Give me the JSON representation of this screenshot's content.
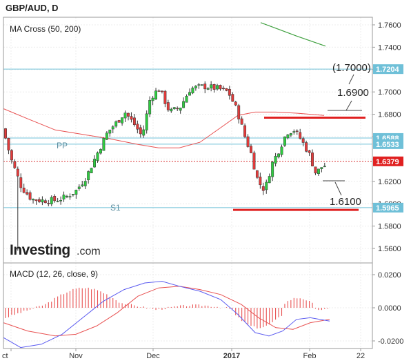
{
  "header": {
    "title": "GBP/AUD, D"
  },
  "chart_data": [
    {
      "type": "candlestick",
      "indicator_label": "MA Cross (50, 200)",
      "x_ticks": [
        "ct",
        "Nov",
        "Dec",
        "2017",
        "Feb",
        "22"
      ],
      "y_ticks": [
        1.76,
        1.74,
        1.72,
        1.7,
        1.68,
        1.66,
        1.64,
        1.62,
        1.6,
        1.58,
        1.56
      ],
      "ylim": [
        1.548,
        1.766
      ],
      "price_tags": [
        {
          "value": 1.7204,
          "label": "1.7204",
          "color": "#6fc0d8"
        },
        {
          "value": 1.6588,
          "label": "1.6588",
          "color": "#6fc0d8"
        },
        {
          "value": 1.6533,
          "label": "1.6533",
          "color": "#6fc0d8"
        },
        {
          "value": 1.6379,
          "label": "1.6379",
          "color": "#e02020"
        },
        {
          "value": 1.5965,
          "label": "1.5965",
          "color": "#6fc0d8"
        }
      ],
      "level_labels": {
        "pp": "PP",
        "s1": "S1"
      },
      "annotations": [
        "(1.7000)",
        "1.6900",
        "1.6100"
      ],
      "resistance": 1.677,
      "support": 1.5945,
      "watermark": "Investing",
      "watermark_suffix": ".com",
      "colors": {
        "up": "#2ecc40",
        "down": "#e23b3b",
        "ma_fast": "#e85050",
        "ma_slow": "#3fa03f",
        "level": "#6fc0d8"
      }
    },
    {
      "type": "macd",
      "label": "MACD (12, 26, close, 9)",
      "y_ticks": [
        0.02,
        0.0,
        -0.02
      ],
      "ylim": [
        -0.024,
        0.024
      ],
      "colors": {
        "macd": "#5a5af0",
        "signal": "#e85050",
        "hist": "#e85050"
      }
    }
  ]
}
